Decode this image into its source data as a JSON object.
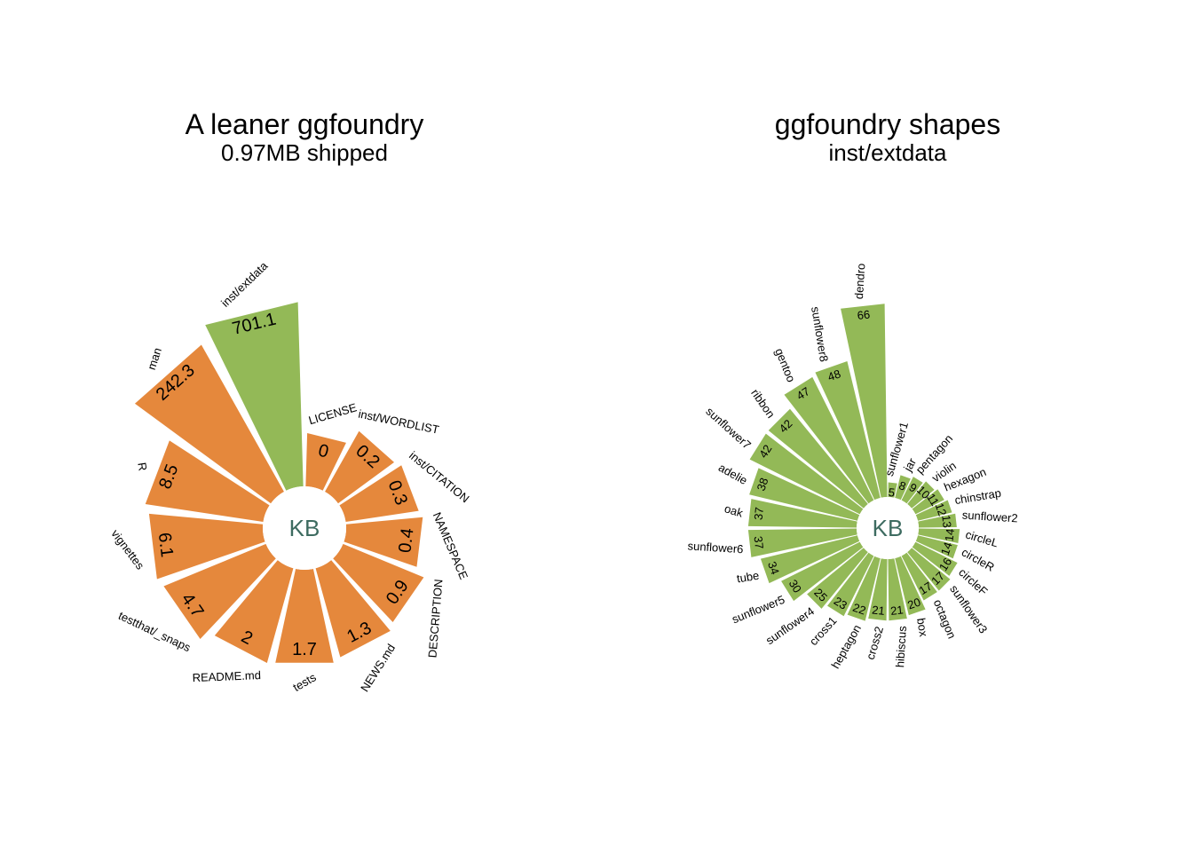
{
  "chart_data": [
    {
      "type": "radial-bar",
      "title": "A leaner ggfoundry",
      "subtitle": "0.97MB shipped",
      "center_label": "KB",
      "categories": [
        "LICENSE",
        "inst/WORDLIST",
        "inst/CITATION",
        "NAMESPACE",
        "DESCRIPTION",
        "NEWS.md",
        "tests",
        "README.md",
        "testthat/_snaps",
        "vignettes",
        "R",
        "man",
        "inst/extdata"
      ],
      "values": [
        0,
        0.2,
        0.3,
        0.4,
        0.9,
        1.3,
        1.7,
        2,
        4.7,
        6.1,
        8.5,
        242.3,
        701.1
      ],
      "colors": [
        "#e5883c",
        "#e5883c",
        "#e5883c",
        "#e5883c",
        "#e5883c",
        "#e5883c",
        "#e5883c",
        "#e5883c",
        "#e5883c",
        "#e5883c",
        "#e5883c",
        "#e5883c",
        "#93b957"
      ]
    },
    {
      "type": "radial-bar",
      "title": "ggfoundry shapes",
      "subtitle": "inst/extdata",
      "center_label": "KB",
      "categories": [
        "sunflower1",
        "jar",
        "pentagon",
        "violin",
        "hexagon",
        "chinstrap",
        "sunflower2",
        "circleL",
        "circleR",
        "circleF",
        "sunflower3",
        "octagon",
        "box",
        "hibiscus",
        "cross2",
        "heptagon",
        "cross1",
        "sunflower4",
        "sunflower5",
        "tube",
        "sunflower6",
        "oak",
        "adelie",
        "sunflower7",
        "ribbon",
        "gentoo",
        "sunflower8",
        "dendro"
      ],
      "values": [
        5,
        8,
        9,
        10,
        11,
        12,
        13,
        14,
        14,
        16,
        17,
        17,
        20,
        21,
        21,
        22,
        23,
        25,
        30,
        34,
        37,
        37,
        38,
        42,
        42,
        47,
        48,
        66
      ],
      "color": "#93b957"
    }
  ]
}
